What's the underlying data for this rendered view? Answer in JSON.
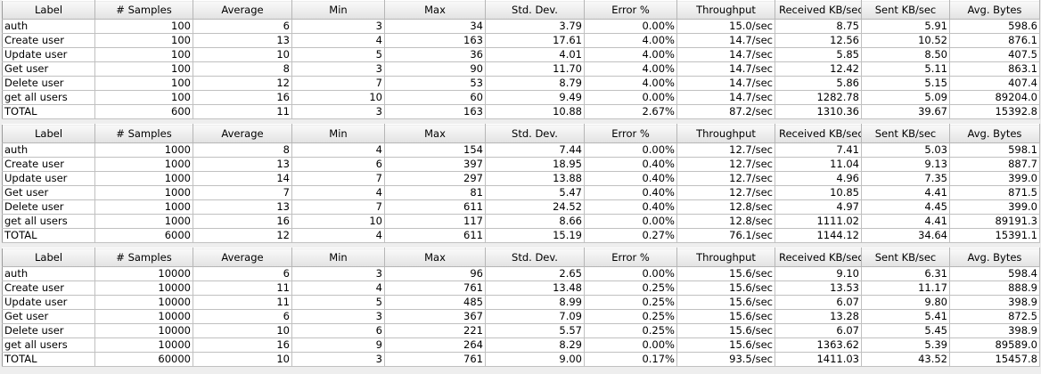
{
  "columns": [
    "Label",
    "# Samples",
    "Average",
    "Min",
    "Max",
    "Std. Dev.",
    "Error %",
    "Throughput",
    "Received KB/sec",
    "Sent KB/sec",
    "Avg. Bytes"
  ],
  "tables": [
    {
      "rows": [
        [
          "auth",
          "100",
          "6",
          "3",
          "34",
          "3.79",
          "0.00%",
          "15.0/sec",
          "8.75",
          "5.91",
          "598.6"
        ],
        [
          "Create user",
          "100",
          "13",
          "4",
          "163",
          "17.61",
          "4.00%",
          "14.7/sec",
          "12.56",
          "10.52",
          "876.1"
        ],
        [
          "Update user",
          "100",
          "10",
          "5",
          "36",
          "4.01",
          "4.00%",
          "14.7/sec",
          "5.85",
          "8.50",
          "407.5"
        ],
        [
          "Get user",
          "100",
          "8",
          "3",
          "90",
          "11.70",
          "4.00%",
          "14.7/sec",
          "12.42",
          "5.11",
          "863.1"
        ],
        [
          "Delete user",
          "100",
          "12",
          "7",
          "53",
          "8.79",
          "4.00%",
          "14.7/sec",
          "5.86",
          "5.15",
          "407.4"
        ],
        [
          "get all users",
          "100",
          "16",
          "10",
          "60",
          "9.49",
          "0.00%",
          "14.7/sec",
          "1282.78",
          "5.09",
          "89204.0"
        ],
        [
          "TOTAL",
          "600",
          "11",
          "3",
          "163",
          "10.88",
          "2.67%",
          "87.2/sec",
          "1310.36",
          "39.67",
          "15392.8"
        ]
      ]
    },
    {
      "rows": [
        [
          "auth",
          "1000",
          "8",
          "4",
          "154",
          "7.44",
          "0.00%",
          "12.7/sec",
          "7.41",
          "5.03",
          "598.1"
        ],
        [
          "Create user",
          "1000",
          "13",
          "6",
          "397",
          "18.95",
          "0.40%",
          "12.7/sec",
          "11.04",
          "9.13",
          "887.7"
        ],
        [
          "Update user",
          "1000",
          "14",
          "7",
          "297",
          "13.88",
          "0.40%",
          "12.7/sec",
          "4.96",
          "7.35",
          "399.0"
        ],
        [
          "Get user",
          "1000",
          "7",
          "4",
          "81",
          "5.47",
          "0.40%",
          "12.7/sec",
          "10.85",
          "4.41",
          "871.5"
        ],
        [
          "Delete user",
          "1000",
          "13",
          "7",
          "611",
          "24.52",
          "0.40%",
          "12.8/sec",
          "4.97",
          "4.45",
          "399.0"
        ],
        [
          "get all users",
          "1000",
          "16",
          "10",
          "117",
          "8.66",
          "0.00%",
          "12.8/sec",
          "1111.02",
          "4.41",
          "89191.3"
        ],
        [
          "TOTAL",
          "6000",
          "12",
          "4",
          "611",
          "15.19",
          "0.27%",
          "76.1/sec",
          "1144.12",
          "34.64",
          "15391.1"
        ]
      ]
    },
    {
      "rows": [
        [
          "auth",
          "10000",
          "6",
          "3",
          "96",
          "2.65",
          "0.00%",
          "15.6/sec",
          "9.10",
          "6.31",
          "598.4"
        ],
        [
          "Create user",
          "10000",
          "11",
          "4",
          "761",
          "13.48",
          "0.25%",
          "15.6/sec",
          "13.53",
          "11.17",
          "888.9"
        ],
        [
          "Update user",
          "10000",
          "11",
          "5",
          "485",
          "8.99",
          "0.25%",
          "15.6/sec",
          "6.07",
          "9.80",
          "398.9"
        ],
        [
          "Get user",
          "10000",
          "6",
          "3",
          "367",
          "7.09",
          "0.25%",
          "15.6/sec",
          "13.28",
          "5.41",
          "872.5"
        ],
        [
          "Delete user",
          "10000",
          "10",
          "6",
          "221",
          "5.57",
          "0.25%",
          "15.6/sec",
          "6.07",
          "5.45",
          "398.9"
        ],
        [
          "get all users",
          "10000",
          "16",
          "9",
          "264",
          "8.29",
          "0.00%",
          "15.6/sec",
          "1363.62",
          "5.39",
          "89589.0"
        ],
        [
          "TOTAL",
          "60000",
          "10",
          "3",
          "761",
          "9.00",
          "0.17%",
          "93.5/sec",
          "1411.03",
          "43.52",
          "15457.8"
        ]
      ]
    }
  ]
}
